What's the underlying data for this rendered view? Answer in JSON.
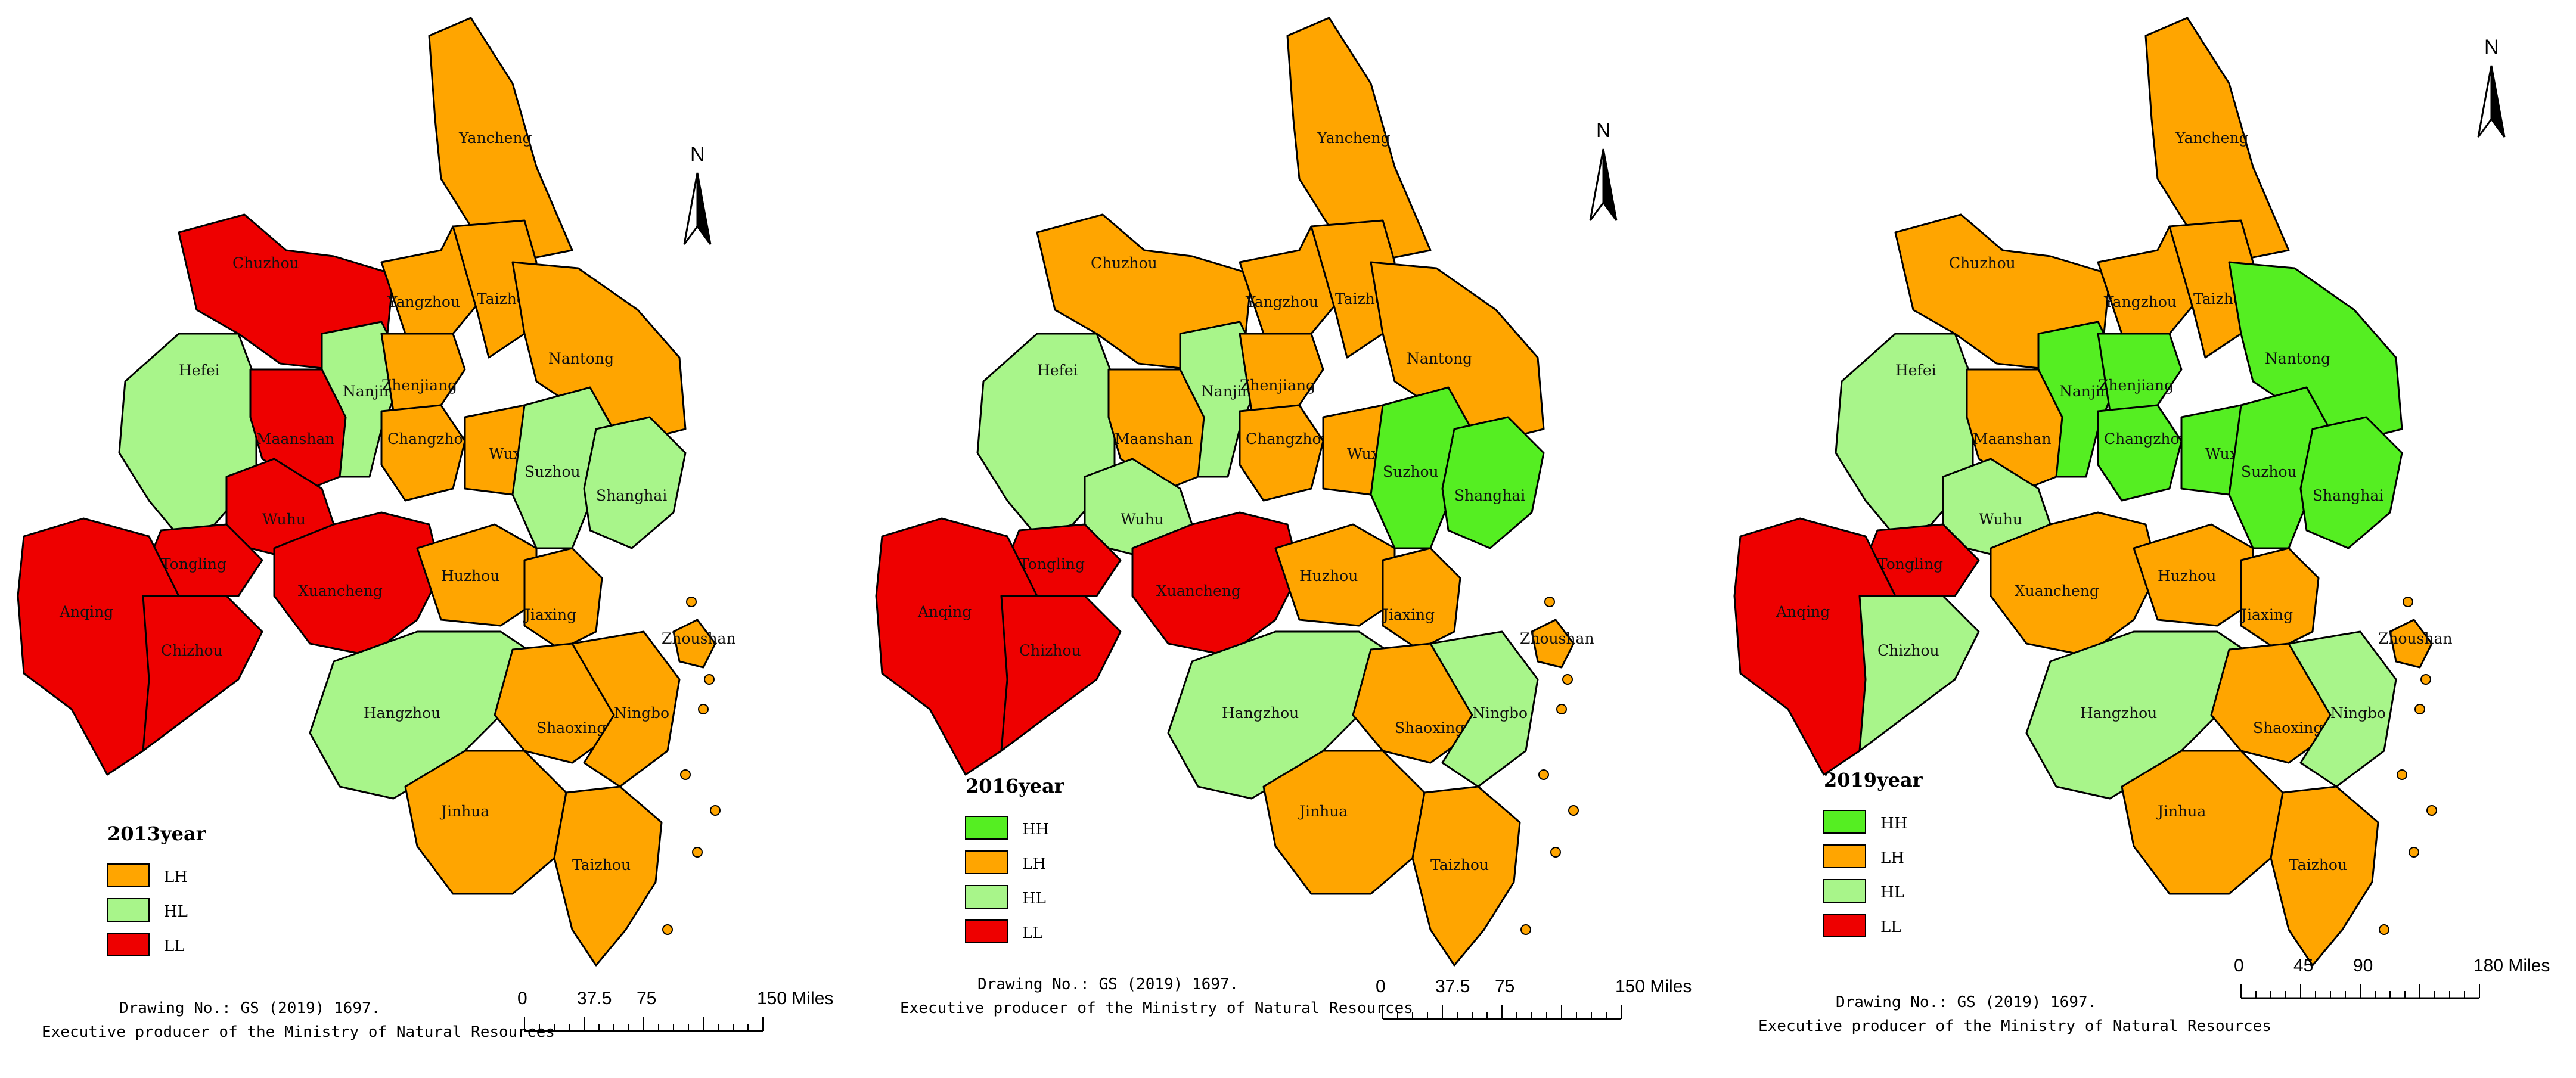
{
  "colors": {
    "HH": "#55ee22",
    "LH": "#ffa500",
    "HL": "#a8f58a",
    "LL": "#ee0000"
  },
  "north_label": "N",
  "scale_unit": "Miles",
  "panels": [
    {
      "legend_title": "2013year",
      "legend": [
        "LH",
        "HL",
        "LL"
      ],
      "scale_ticks": [
        "0",
        "37.5",
        "75",
        "150 Miles"
      ],
      "credit_line1": "Drawing No.: GS (2019) 1697.",
      "credit_line2": "Executive producer of the Ministry of Natural Resources",
      "cities": [
        {
          "name": "Yancheng",
          "class": "LH"
        },
        {
          "name": "Chuzhou",
          "class": "LL"
        },
        {
          "name": "Yangzhou",
          "class": "LH"
        },
        {
          "name": "Taizhou",
          "class": "LH"
        },
        {
          "name": "Nantong",
          "class": "LH"
        },
        {
          "name": "Hefei",
          "class": "HL"
        },
        {
          "name": "Nanjing",
          "class": "HL"
        },
        {
          "name": "Zhenjiang",
          "class": "LH"
        },
        {
          "name": "Maanshan",
          "class": "LL"
        },
        {
          "name": "Changzhou",
          "class": "LH"
        },
        {
          "name": "Wuxi",
          "class": "LH"
        },
        {
          "name": "Suzhou",
          "class": "HL"
        },
        {
          "name": "Shanghai",
          "class": "HL"
        },
        {
          "name": "Wuhu",
          "class": "LL"
        },
        {
          "name": "Tongling",
          "class": "LL"
        },
        {
          "name": "Anqing",
          "class": "LL"
        },
        {
          "name": "Xuancheng",
          "class": "LL"
        },
        {
          "name": "Chizhou",
          "class": "LL"
        },
        {
          "name": "Huzhou",
          "class": "LH"
        },
        {
          "name": "Jiaxing",
          "class": "LH"
        },
        {
          "name": "Zhoushan",
          "class": "LH"
        },
        {
          "name": "Hangzhou",
          "class": "HL"
        },
        {
          "name": "Shaoxing",
          "class": "LH"
        },
        {
          "name": "Ningbo",
          "class": "LH"
        },
        {
          "name": "Jinhua",
          "class": "LH"
        },
        {
          "name": "Taizhou",
          "class": "LH"
        }
      ]
    },
    {
      "legend_title": "2016year",
      "legend": [
        "HH",
        "LH",
        "HL",
        "LL"
      ],
      "scale_ticks": [
        "0",
        "37.5",
        "75",
        "150 Miles"
      ],
      "credit_line1": "Drawing No.: GS (2019) 1697.",
      "credit_line2": "Executive producer of the Ministry of Natural Resources",
      "cities": [
        {
          "name": "Yancheng",
          "class": "LH"
        },
        {
          "name": "Chuzhou",
          "class": "LH"
        },
        {
          "name": "Yangzhou",
          "class": "LH"
        },
        {
          "name": "Taizhou",
          "class": "LH"
        },
        {
          "name": "Nantong",
          "class": "LH"
        },
        {
          "name": "Hefei",
          "class": "HL"
        },
        {
          "name": "Nanjing",
          "class": "HL"
        },
        {
          "name": "Zhenjiang",
          "class": "LH"
        },
        {
          "name": "Maanshan",
          "class": "LH"
        },
        {
          "name": "Changzhou",
          "class": "LH"
        },
        {
          "name": "Wuxi",
          "class": "LH"
        },
        {
          "name": "Suzhou",
          "class": "HH"
        },
        {
          "name": "Shanghai",
          "class": "HH"
        },
        {
          "name": "Wuhu",
          "class": "HL"
        },
        {
          "name": "Tongling",
          "class": "LL"
        },
        {
          "name": "Anqing",
          "class": "LL"
        },
        {
          "name": "Xuancheng",
          "class": "LL"
        },
        {
          "name": "Chizhou",
          "class": "LL"
        },
        {
          "name": "Huzhou",
          "class": "LH"
        },
        {
          "name": "Jiaxing",
          "class": "LH"
        },
        {
          "name": "Zhoushan",
          "class": "LH"
        },
        {
          "name": "Hangzhou",
          "class": "HL"
        },
        {
          "name": "Shaoxing",
          "class": "LH"
        },
        {
          "name": "Ningbo",
          "class": "HL"
        },
        {
          "name": "Jinhua",
          "class": "LH"
        },
        {
          "name": "Taizhou",
          "class": "LH"
        }
      ]
    },
    {
      "legend_title": "2019year",
      "legend": [
        "HH",
        "LH",
        "HL",
        "LL"
      ],
      "scale_ticks": [
        "0",
        "45",
        "90",
        "180 Miles"
      ],
      "credit_line1": "Drawing No.: GS (2019) 1697.",
      "credit_line2": "Executive producer of the Ministry of Natural Resources",
      "cities": [
        {
          "name": "Yancheng",
          "class": "LH"
        },
        {
          "name": "Chuzhou",
          "class": "LH"
        },
        {
          "name": "Yangzhou",
          "class": "LH"
        },
        {
          "name": "Taizhou",
          "class": "LH"
        },
        {
          "name": "Nantong",
          "class": "HH"
        },
        {
          "name": "Hefei",
          "class": "HL"
        },
        {
          "name": "Nanjing",
          "class": "HH"
        },
        {
          "name": "Zhenjiang",
          "class": "HH"
        },
        {
          "name": "Maanshan",
          "class": "LH"
        },
        {
          "name": "Changzhou",
          "class": "HH"
        },
        {
          "name": "Wuxi",
          "class": "HH"
        },
        {
          "name": "Suzhou",
          "class": "HH"
        },
        {
          "name": "Shanghai",
          "class": "HH"
        },
        {
          "name": "Wuhu",
          "class": "HL"
        },
        {
          "name": "Tongling",
          "class": "LL"
        },
        {
          "name": "Anqing",
          "class": "LL"
        },
        {
          "name": "Xuancheng",
          "class": "LH"
        },
        {
          "name": "Chizhou",
          "class": "HL"
        },
        {
          "name": "Huzhou",
          "class": "LH"
        },
        {
          "name": "Jiaxing",
          "class": "LH"
        },
        {
          "name": "Zhoushan",
          "class": "LH"
        },
        {
          "name": "Hangzhou",
          "class": "HL"
        },
        {
          "name": "Shaoxing",
          "class": "LH"
        },
        {
          "name": "Ningbo",
          "class": "HL"
        },
        {
          "name": "Jinhua",
          "class": "LH"
        },
        {
          "name": "Taizhou",
          "class": "LH"
        }
      ]
    }
  ]
}
